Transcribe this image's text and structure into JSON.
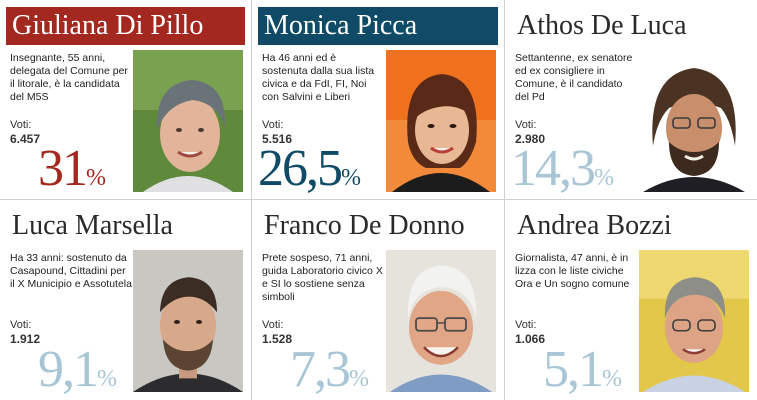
{
  "labels": {
    "votes": "Voti:"
  },
  "colors": {
    "winner_header": "#a3281f",
    "second_header": "#0f4a66",
    "winner_pct": "#a3281f",
    "second_pct": "#0f4a66",
    "other_pct": "#a8c6d6"
  },
  "candidates": [
    {
      "name": "Giuliana Di Pillo",
      "description": "Insegnante, 55 anni, delegata del Comune per il litorale, è la candidata del M5S",
      "votes": "6.457",
      "percent": "31",
      "percent_sign": "%"
    },
    {
      "name": "Monica Picca",
      "description": "Ha 46 anni ed è sostenuta dalla sua lista civica e da FdI, FI, Noi con Salvini e Liberi",
      "votes": "5.516",
      "percent": "26,5",
      "percent_sign": "%"
    },
    {
      "name": "Athos De Luca",
      "description": "Settantenne, ex senatore ed ex consigliere in Comune, è il candidato del Pd",
      "votes": "2.980",
      "percent": "14,3",
      "percent_sign": "%"
    },
    {
      "name": "Luca Marsella",
      "description": "Ha 33 anni: sostenuto da Casapound, Cittadini per il X Municipio e Assotutela",
      "votes": "1.912",
      "percent": "9,1",
      "percent_sign": "%"
    },
    {
      "name": "Franco De Donno",
      "description": "Prete sospeso, 71 anni, guida Laboratorio civico X e SI lo sostiene senza simboli",
      "votes": "1.528",
      "percent": "7,3",
      "percent_sign": "%"
    },
    {
      "name": "Andrea Bozzi",
      "description": "Giornalista, 47 anni, è in lizza con le liste civiche Ora e Un sogno comune",
      "votes": "1.066",
      "percent": "5,1",
      "percent_sign": "%"
    }
  ]
}
